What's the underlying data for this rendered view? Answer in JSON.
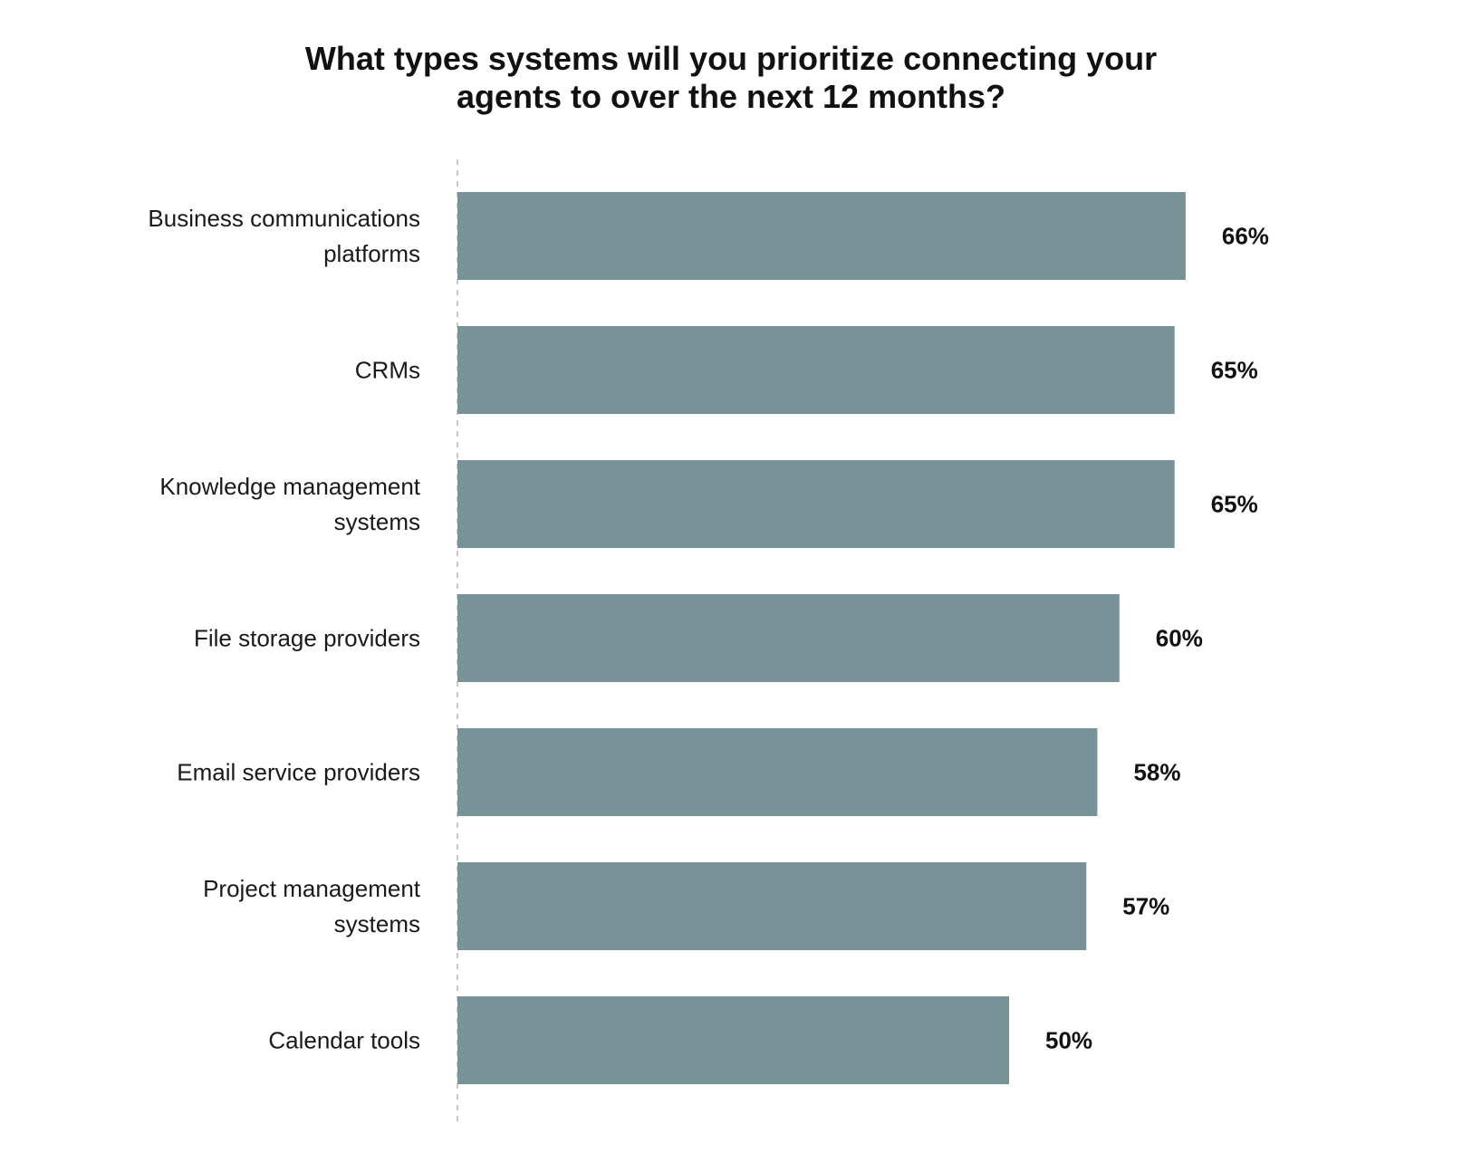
{
  "chart_data": {
    "type": "bar",
    "orientation": "horizontal",
    "title_lines": [
      "What types systems will you prioritize connecting your",
      "agents to over the next 12 months?"
    ],
    "categories": [
      [
        "Business communications",
        "platforms"
      ],
      [
        "CRMs"
      ],
      [
        "Knowledge management",
        "systems"
      ],
      [
        "File storage providers"
      ],
      [
        "Email service providers"
      ],
      [
        "Project management",
        "systems"
      ],
      [
        "Calendar tools"
      ]
    ],
    "values": [
      66,
      65,
      65,
      60,
      58,
      57,
      50
    ],
    "value_labels": [
      "66%",
      "65%",
      "65%",
      "60%",
      "58%",
      "57%",
      "50%"
    ],
    "xlim": [
      0,
      100
    ],
    "grid": false,
    "legend": "none",
    "colors": {
      "bar": "#789398",
      "axis_line": "#c8c8c8",
      "text": "#111111"
    }
  }
}
